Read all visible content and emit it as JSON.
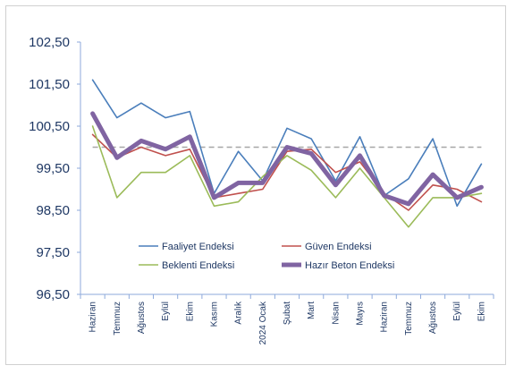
{
  "chart_data": {
    "type": "line",
    "categories": [
      "Haziran",
      "Temmuz",
      "Ağustos",
      "Eylül",
      "Ekim",
      "Kasım",
      "Aralık",
      "2024 Ocak",
      "Şubat",
      "Mart",
      "Nisan",
      "Mayıs",
      "Haziran",
      "Temmuz",
      "Ağustos",
      "Eylül",
      "Ekim"
    ],
    "ylim": [
      96.5,
      102.5
    ],
    "yticks": [
      "96,50",
      "97,50",
      "98,50",
      "99,50",
      "100,50",
      "101,50",
      "102,50"
    ],
    "ytick_values": [
      96.5,
      97.5,
      98.5,
      99.5,
      100.5,
      101.5,
      102.5
    ],
    "reference_line": 100,
    "series": [
      {
        "name": "Faaliyet Endeksi",
        "color": "#4a7ebb",
        "width": 1.6,
        "values": [
          101.6,
          100.7,
          101.05,
          100.7,
          100.85,
          98.9,
          99.9,
          99.2,
          100.45,
          100.2,
          99.2,
          100.25,
          98.85,
          99.25,
          100.2,
          98.6,
          99.6
        ]
      },
      {
        "name": "Güven Endeksi",
        "color": "#c0504d",
        "width": 1.6,
        "values": [
          100.3,
          99.75,
          100.0,
          99.8,
          99.95,
          98.8,
          98.9,
          99.0,
          99.9,
          99.95,
          99.4,
          99.65,
          98.9,
          98.5,
          99.1,
          99.0,
          98.7
        ]
      },
      {
        "name": "Beklenti Endeksi",
        "color": "#9bbb59",
        "width": 1.6,
        "values": [
          100.5,
          98.8,
          99.4,
          99.4,
          99.8,
          98.6,
          98.7,
          99.3,
          99.8,
          99.45,
          98.8,
          99.5,
          98.8,
          98.1,
          98.8,
          98.8,
          98.9
        ]
      },
      {
        "name": "Hazır Beton Endeksi",
        "color": "#8064a2",
        "width": 5,
        "values": [
          100.8,
          99.75,
          100.15,
          99.95,
          100.25,
          98.8,
          99.15,
          99.15,
          100.0,
          99.85,
          99.1,
          99.8,
          98.85,
          98.65,
          99.35,
          98.8,
          99.05
        ]
      }
    ]
  }
}
